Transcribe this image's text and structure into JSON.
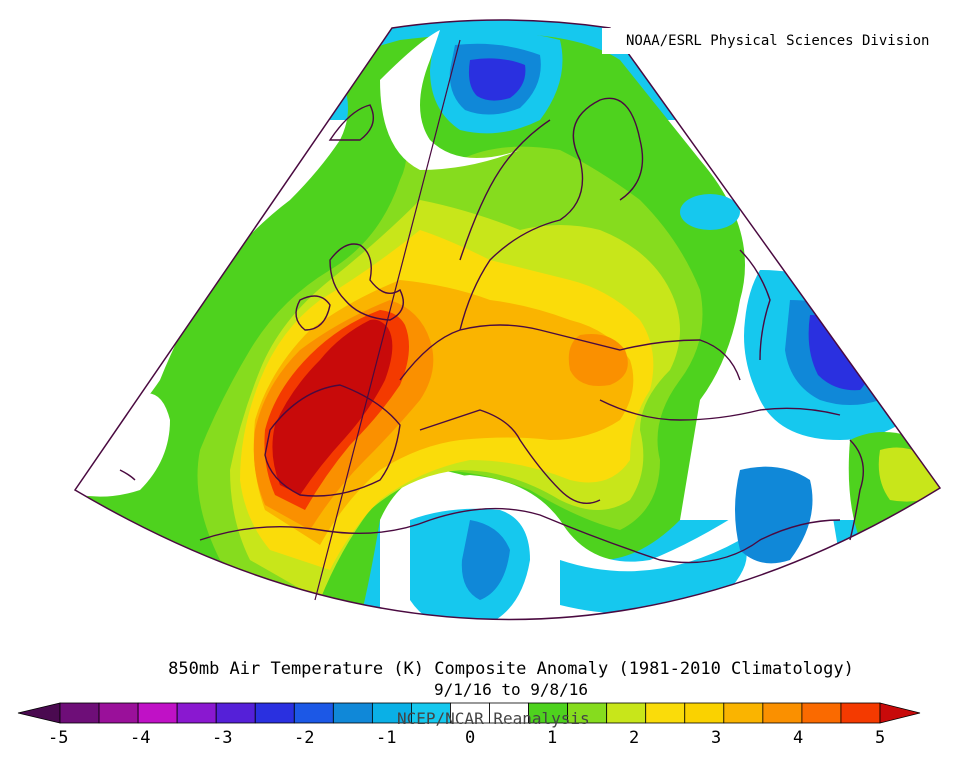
{
  "credit": "NOAA/ESRL Physical Sciences Division",
  "title": "850mb Air Temperature (K) Composite Anomaly (1981-2010 Climatology)",
  "date_range": "9/1/16  to 9/8/16",
  "source": "NCEP/NCAR Reanalysis",
  "colorbar": {
    "ticks": [
      "-5",
      "-4",
      "-3",
      "-2",
      "-1",
      "0",
      "1",
      "2",
      "3",
      "4",
      "5"
    ],
    "colors": [
      "#4a0a50",
      "#6e0e78",
      "#9a109a",
      "#c011c6",
      "#8a18d0",
      "#5520d8",
      "#2a30e0",
      "#1c58e6",
      "#1088d8",
      "#0ab0e6",
      "#16c8ee",
      "#ffffff",
      "#ffffff",
      "#4ed21e",
      "#86dc1e",
      "#c8e61a",
      "#fadc0a",
      "#fad200",
      "#fab400",
      "#fa9000",
      "#fa6a00",
      "#f43a00",
      "#c80a0a"
    ],
    "min": -5,
    "max": 5
  },
  "map": {
    "variable": "850mb air temperature anomaly",
    "units": "K",
    "region": "Europe / North Atlantic / Mediterranean"
  }
}
